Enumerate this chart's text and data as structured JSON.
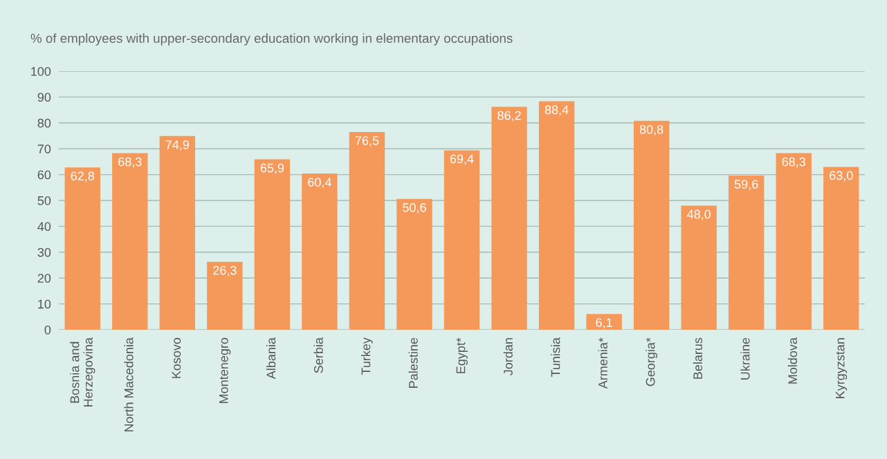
{
  "chart_data": {
    "type": "bar",
    "title": "% of employees with upper-secondary education working in elementary occupations",
    "categories": [
      "Bosnia and\nHerzegovina",
      "North Macedonia",
      "Kosovo",
      "Montenegro",
      "Albania",
      "Serbia",
      "Turkey",
      "Palestine",
      "Egypt*",
      "Jordan",
      "Tunisia",
      "Armenia*",
      "Georgia*",
      "Belarus",
      "Ukraine",
      "Moldova",
      "Kyrgyzstan"
    ],
    "values": [
      62.8,
      68.3,
      74.9,
      26.3,
      65.9,
      60.4,
      76.5,
      50.6,
      69.4,
      86.2,
      88.4,
      6.1,
      80.8,
      48.0,
      59.6,
      68.3,
      63.0
    ],
    "value_labels": [
      "62,8",
      "68,3",
      "74,9",
      "26,3",
      "65,9",
      "60,4",
      "76,5",
      "50,6",
      "69,4",
      "86,2",
      "88,4",
      "6,1",
      "80,8",
      "48,0",
      "59,6",
      "68,3",
      "63,0"
    ],
    "color": "#f4995a",
    "ylim": [
      0,
      100
    ],
    "yticks": [
      0,
      10,
      20,
      30,
      40,
      50,
      60,
      70,
      80,
      90,
      100
    ],
    "grid": "y"
  }
}
